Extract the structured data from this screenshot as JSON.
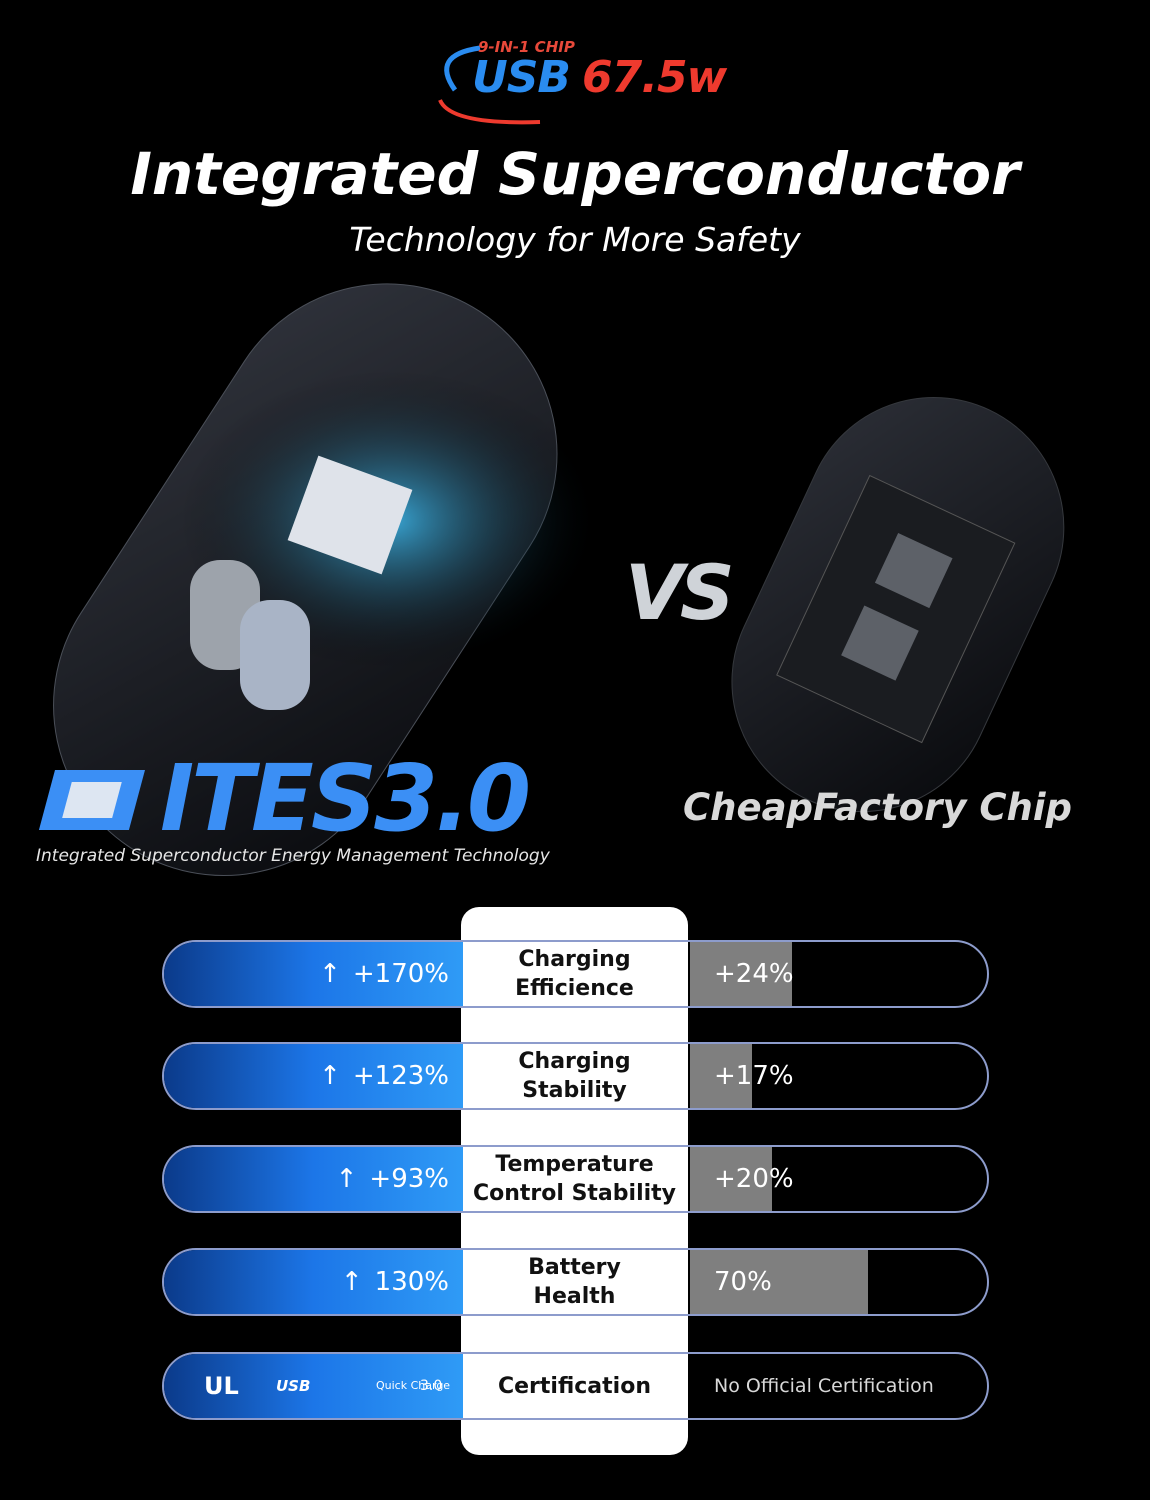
{
  "header": {
    "chip_tag": "9-IN-1 CHIP",
    "logo_usb": "USB",
    "logo_power": "67.5w",
    "title": "Integrated Superconductor",
    "subtitle": "Technology for More Safety"
  },
  "versus": {
    "vs": "VS",
    "brand": "ITES3.0",
    "brand_caption": "Integrated Superconductor Energy Management Technology",
    "rival": "CheapFactory Chip"
  },
  "comparison": {
    "rows": [
      {
        "ours": "+170%",
        "label": [
          "Charging",
          "Efficience"
        ],
        "theirs": "+24%"
      },
      {
        "ours": "+123%",
        "label": [
          "Charging",
          "Stability"
        ],
        "theirs": "+17%"
      },
      {
        "ours": "+93%",
        "label": [
          "Temperature",
          "Control Stability"
        ],
        "theirs": "+20%"
      },
      {
        "ours": "130%",
        "label": [
          "Battery",
          "Health"
        ],
        "theirs": "70%"
      }
    ],
    "certification": {
      "label": "Certification",
      "ours": [
        "UL",
        "USB",
        "Quick Charge",
        "3.0"
      ],
      "theirs": "No Official Certification"
    },
    "arrow": "↑"
  }
}
